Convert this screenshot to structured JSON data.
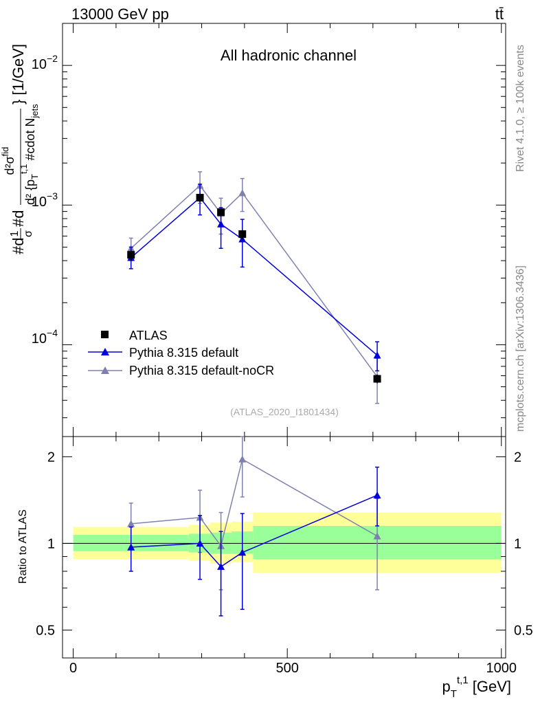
{
  "header": {
    "left": "13000 GeV pp",
    "right": "tt̄"
  },
  "side": {
    "rivet": "Rivet 4.1.0, ≥ 100k events",
    "mcplots": "mcplots.cern.ch [arXiv:1306.3436]"
  },
  "colors": {
    "atlas": "#000000",
    "pythia_default": "#0000dd",
    "pythia_nocr": "#8080b0",
    "band_inner": "#99ff99",
    "band_outer": "#ffff99"
  },
  "chart_data": [
    {
      "type": "scatter",
      "title": "All hadronic channel",
      "watermark": "(ATLAS_2020_I1801434)",
      "ylabel": "#d\\frac{1}{σ}#d\\frac{d²σ^{fid}}{d²{p_T^{t,1} #cdot N_jets}} [1/GeV]",
      "ylabel_parts": {
        "main": "#d",
        "frac_num": "1",
        "frac_den": "σ",
        "mid": "#d",
        "num": "d²σ",
        "num_sup": "fid",
        "den": "d² {p",
        "den_sub": "T",
        "den_sup": "t,1",
        "den_end": " #cdot N",
        "den_end_sub": "jets",
        "tail": "} [1/GeV]"
      },
      "yscale": "log",
      "ylim": [
        2.2e-05,
        0.02
      ],
      "xlim": [
        -25,
        1010
      ],
      "ytick_labels": [
        {
          "value": 0.01,
          "base": "10",
          "exp": "−2"
        },
        {
          "value": 0.001,
          "base": "10",
          "exp": "−3"
        },
        {
          "value": 0.0001,
          "base": "10",
          "exp": "−4"
        }
      ],
      "legend": [
        "ATLAS",
        "Pythia 8.315 default",
        "Pythia 8.315 default-noCR"
      ],
      "legend_position": "bottom-left",
      "series": [
        {
          "name": "ATLAS",
          "marker": "square",
          "x": [
            135,
            296,
            345,
            395,
            710
          ],
          "xbins": [
            [
              0,
              270
            ],
            [
              270,
              320
            ],
            [
              320,
              370
            ],
            [
              370,
              420
            ],
            [
              420,
              1000
            ]
          ],
          "y": [
            0.00044,
            0.00113,
            0.00089,
            0.00062,
            5.7e-05
          ],
          "yerr_lo": [
            0.0004,
            0.00105,
            0.00083,
            0.00057,
            5.3e-05
          ],
          "yerr_hi": [
            0.00048,
            0.00121,
            0.00095,
            0.00067,
            6.1e-05
          ]
        },
        {
          "name": "Pythia 8.315 default",
          "marker": "triangle",
          "x": [
            135,
            296,
            345,
            395,
            710
          ],
          "y": [
            0.00042,
            0.00113,
            0.00073,
            0.00057,
            8.4e-05
          ],
          "yerr_lo": [
            0.00035,
            0.00085,
            0.00049,
            0.00036,
            6.5e-05
          ],
          "yerr_hi": [
            0.0005,
            0.00141,
            0.00096,
            0.00079,
            0.000105
          ]
        },
        {
          "name": "Pythia 8.315 default-noCR",
          "marker": "triangle",
          "x": [
            135,
            296,
            345,
            395,
            710
          ],
          "y": [
            0.00049,
            0.00138,
            0.00087,
            0.00122,
            5.9e-05
          ],
          "yerr_lo": [
            0.0004,
            0.00103,
            0.00062,
            0.0009,
            3.8e-05
          ],
          "yerr_hi": [
            0.00058,
            0.00173,
            0.00112,
            0.00155,
            8e-05
          ]
        }
      ]
    },
    {
      "type": "scatter",
      "ylabel": "Ratio to ATLAS",
      "xlabel": "p_T^{t,1} [GeV]",
      "xlabel_parts": {
        "main": "p",
        "sub": "T",
        "sup": "t,1",
        "tail": " [GeV]"
      },
      "yscale": "log",
      "ylim": [
        0.4,
        2.35
      ],
      "xlim": [
        -25,
        1010
      ],
      "yticks": [
        0.5,
        1,
        2
      ],
      "ytick_labels": [
        "0.5",
        "1",
        "2"
      ],
      "xticks": [
        0,
        500,
        1000
      ],
      "xtick_labels": [
        "0",
        "500",
        "1000"
      ],
      "band_bins": [
        {
          "x0": 0,
          "x1": 270,
          "inner_lo": 0.94,
          "inner_hi": 1.07,
          "outer_lo": 0.88,
          "outer_hi": 1.14
        },
        {
          "x0": 270,
          "x1": 320,
          "inner_lo": 0.93,
          "inner_hi": 1.08,
          "outer_lo": 0.87,
          "outer_hi": 1.16
        },
        {
          "x0": 320,
          "x1": 370,
          "inner_lo": 0.92,
          "inner_hi": 1.09,
          "outer_lo": 0.85,
          "outer_hi": 1.18
        },
        {
          "x0": 370,
          "x1": 420,
          "inner_lo": 0.92,
          "inner_hi": 1.1,
          "outer_lo": 0.86,
          "outer_hi": 1.19
        },
        {
          "x0": 420,
          "x1": 1000,
          "inner_lo": 0.88,
          "inner_hi": 1.15,
          "outer_lo": 0.79,
          "outer_hi": 1.28
        }
      ],
      "series": [
        {
          "name": "Pythia 8.315 default",
          "x": [
            135,
            296,
            345,
            395,
            710
          ],
          "y": [
            0.97,
            1.0,
            0.83,
            0.93,
            1.47
          ],
          "yerr_lo": [
            0.8,
            0.75,
            0.56,
            0.59,
            1.15
          ],
          "yerr_hi": [
            1.14,
            1.25,
            1.1,
            1.27,
            1.84
          ]
        },
        {
          "name": "Pythia 8.315 default-noCR",
          "x": [
            135,
            296,
            345,
            395,
            710
          ],
          "y": [
            1.17,
            1.23,
            0.98,
            1.96,
            1.06
          ],
          "yerr_lo": [
            0.97,
            0.93,
            0.69,
            1.45,
            0.69
          ],
          "yerr_hi": [
            1.38,
            1.53,
            1.28,
            2.47,
            1.43
          ]
        }
      ]
    }
  ]
}
